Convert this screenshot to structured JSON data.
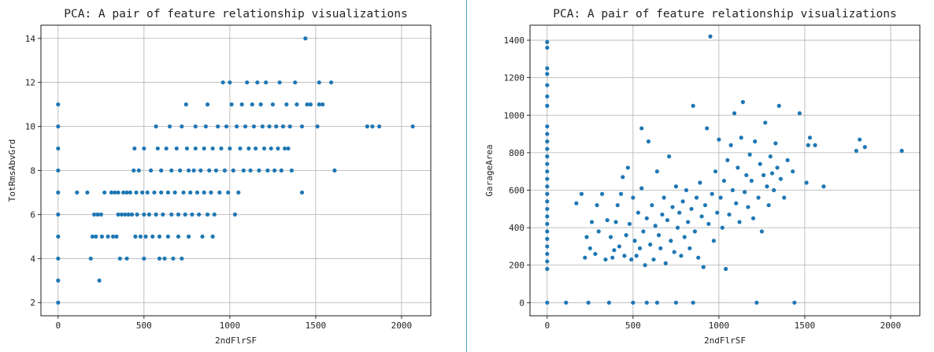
{
  "colors": {
    "point": "#1f77b4",
    "grid": "#b0b0b0",
    "axes": "#000000",
    "divider": "#4aa6b8"
  },
  "chart_data": [
    {
      "type": "scatter",
      "title": "PCA: A pair of feature relationship visualizations",
      "xlabel": "2ndFlrSF",
      "ylabel": "TotRmsAbvGrd",
      "xlim": [
        -100,
        2170
      ],
      "ylim": [
        1.4,
        14.6
      ],
      "xticks": [
        0,
        500,
        1000,
        1500,
        2000
      ],
      "yticks": [
        2,
        4,
        6,
        8,
        10,
        12,
        14
      ],
      "grid": true,
      "points": [
        [
          0,
          2
        ],
        [
          0,
          3
        ],
        [
          0,
          4
        ],
        [
          0,
          5
        ],
        [
          0,
          6
        ],
        [
          0,
          7
        ],
        [
          0,
          8
        ],
        [
          0,
          9
        ],
        [
          0,
          10
        ],
        [
          0,
          11
        ],
        [
          110,
          7
        ],
        [
          170,
          7
        ],
        [
          190,
          4
        ],
        [
          200,
          5
        ],
        [
          210,
          6
        ],
        [
          220,
          5
        ],
        [
          230,
          6
        ],
        [
          240,
          3
        ],
        [
          250,
          6
        ],
        [
          255,
          5
        ],
        [
          270,
          7
        ],
        [
          290,
          5
        ],
        [
          310,
          7
        ],
        [
          320,
          5
        ],
        [
          330,
          7
        ],
        [
          340,
          5
        ],
        [
          350,
          7
        ],
        [
          350,
          6
        ],
        [
          360,
          4
        ],
        [
          370,
          6
        ],
        [
          380,
          7
        ],
        [
          390,
          6
        ],
        [
          400,
          4
        ],
        [
          400,
          7
        ],
        [
          410,
          6
        ],
        [
          420,
          7
        ],
        [
          430,
          6
        ],
        [
          440,
          8
        ],
        [
          445,
          9
        ],
        [
          450,
          5
        ],
        [
          455,
          7
        ],
        [
          460,
          6
        ],
        [
          470,
          8
        ],
        [
          480,
          5
        ],
        [
          490,
          7
        ],
        [
          500,
          6
        ],
        [
          500,
          9
        ],
        [
          500,
          4
        ],
        [
          510,
          5
        ],
        [
          520,
          7
        ],
        [
          530,
          6
        ],
        [
          540,
          8
        ],
        [
          550,
          5
        ],
        [
          560,
          7
        ],
        [
          570,
          10
        ],
        [
          570,
          6
        ],
        [
          580,
          9
        ],
        [
          590,
          5
        ],
        [
          590,
          4
        ],
        [
          600,
          7
        ],
        [
          600,
          8
        ],
        [
          610,
          6
        ],
        [
          620,
          4
        ],
        [
          630,
          9
        ],
        [
          640,
          7
        ],
        [
          640,
          5
        ],
        [
          650,
          10
        ],
        [
          660,
          6
        ],
        [
          660,
          8
        ],
        [
          670,
          4
        ],
        [
          680,
          7
        ],
        [
          690,
          9
        ],
        [
          700,
          6
        ],
        [
          700,
          5
        ],
        [
          710,
          8
        ],
        [
          720,
          10
        ],
        [
          720,
          4
        ],
        [
          730,
          7
        ],
        [
          740,
          6
        ],
        [
          745,
          11
        ],
        [
          750,
          9
        ],
        [
          760,
          5
        ],
        [
          760,
          8
        ],
        [
          770,
          7
        ],
        [
          780,
          6
        ],
        [
          790,
          8
        ],
        [
          800,
          10
        ],
        [
          800,
          9
        ],
        [
          810,
          7
        ],
        [
          820,
          6
        ],
        [
          830,
          8
        ],
        [
          840,
          5
        ],
        [
          850,
          7
        ],
        [
          850,
          9
        ],
        [
          860,
          10
        ],
        [
          870,
          6
        ],
        [
          870,
          11
        ],
        [
          880,
          8
        ],
        [
          890,
          7
        ],
        [
          900,
          9
        ],
        [
          900,
          5
        ],
        [
          910,
          6
        ],
        [
          920,
          8
        ],
        [
          930,
          10
        ],
        [
          940,
          7
        ],
        [
          950,
          9
        ],
        [
          960,
          12
        ],
        [
          970,
          8
        ],
        [
          980,
          10
        ],
        [
          990,
          7
        ],
        [
          1000,
          12
        ],
        [
          1000,
          9
        ],
        [
          1010,
          11
        ],
        [
          1020,
          8
        ],
        [
          1030,
          6
        ],
        [
          1040,
          10
        ],
        [
          1050,
          7
        ],
        [
          1060,
          9
        ],
        [
          1070,
          11
        ],
        [
          1080,
          8
        ],
        [
          1090,
          10
        ],
        [
          1100,
          12
        ],
        [
          1110,
          9
        ],
        [
          1120,
          8
        ],
        [
          1130,
          11
        ],
        [
          1140,
          10
        ],
        [
          1150,
          9
        ],
        [
          1160,
          12
        ],
        [
          1170,
          8
        ],
        [
          1180,
          11
        ],
        [
          1190,
          10
        ],
        [
          1200,
          9
        ],
        [
          1210,
          12
        ],
        [
          1220,
          8
        ],
        [
          1230,
          10
        ],
        [
          1240,
          9
        ],
        [
          1250,
          11
        ],
        [
          1260,
          8
        ],
        [
          1270,
          10
        ],
        [
          1280,
          9
        ],
        [
          1290,
          12
        ],
        [
          1300,
          8
        ],
        [
          1310,
          10
        ],
        [
          1320,
          9
        ],
        [
          1330,
          11
        ],
        [
          1340,
          9
        ],
        [
          1350,
          10
        ],
        [
          1360,
          8
        ],
        [
          1380,
          12
        ],
        [
          1390,
          11
        ],
        [
          1420,
          10
        ],
        [
          1420,
          7
        ],
        [
          1440,
          14
        ],
        [
          1450,
          11
        ],
        [
          1470,
          11
        ],
        [
          1510,
          10
        ],
        [
          1520,
          12
        ],
        [
          1520,
          11
        ],
        [
          1540,
          11
        ],
        [
          1590,
          12
        ],
        [
          1610,
          8
        ],
        [
          1800,
          10
        ],
        [
          1830,
          10
        ],
        [
          1870,
          10
        ],
        [
          2065,
          10
        ]
      ]
    },
    {
      "type": "scatter",
      "title": "PCA: A pair of feature relationship visualizations",
      "xlabel": "2ndFlrSF",
      "ylabel": "GarageArea",
      "xlim": [
        -100,
        2170
      ],
      "ylim": [
        -70,
        1480
      ],
      "xticks": [
        0,
        500,
        1000,
        1500,
        2000
      ],
      "yticks": [
        0,
        200,
        400,
        600,
        800,
        1000,
        1200,
        1400
      ],
      "grid": true,
      "points": [
        [
          0,
          0
        ],
        [
          0,
          180
        ],
        [
          0,
          220
        ],
        [
          0,
          260
        ],
        [
          0,
          300
        ],
        [
          0,
          340
        ],
        [
          0,
          380
        ],
        [
          0,
          420
        ],
        [
          0,
          460
        ],
        [
          0,
          500
        ],
        [
          0,
          540
        ],
        [
          0,
          580
        ],
        [
          0,
          620
        ],
        [
          0,
          660
        ],
        [
          0,
          700
        ],
        [
          0,
          740
        ],
        [
          0,
          780
        ],
        [
          0,
          820
        ],
        [
          0,
          860
        ],
        [
          0,
          900
        ],
        [
          0,
          940
        ],
        [
          0,
          1050
        ],
        [
          0,
          1100
        ],
        [
          0,
          1160
        ],
        [
          0,
          1220
        ],
        [
          0,
          1250
        ],
        [
          0,
          1360
        ],
        [
          0,
          1390
        ],
        [
          110,
          0
        ],
        [
          170,
          530
        ],
        [
          200,
          580
        ],
        [
          220,
          240
        ],
        [
          230,
          350
        ],
        [
          240,
          0
        ],
        [
          250,
          290
        ],
        [
          260,
          430
        ],
        [
          280,
          260
        ],
        [
          290,
          520
        ],
        [
          300,
          380
        ],
        [
          320,
          580
        ],
        [
          340,
          230
        ],
        [
          350,
          440
        ],
        [
          360,
          0
        ],
        [
          370,
          350
        ],
        [
          380,
          240
        ],
        [
          390,
          280
        ],
        [
          400,
          430
        ],
        [
          410,
          520
        ],
        [
          420,
          300
        ],
        [
          430,
          580
        ],
        [
          440,
          670
        ],
        [
          450,
          250
        ],
        [
          460,
          360
        ],
        [
          470,
          720
        ],
        [
          480,
          420
        ],
        [
          490,
          230
        ],
        [
          500,
          0
        ],
        [
          500,
          560
        ],
        [
          510,
          330
        ],
        [
          520,
          250
        ],
        [
          530,
          480
        ],
        [
          540,
          290
        ],
        [
          550,
          930
        ],
        [
          550,
          610
        ],
        [
          560,
          380
        ],
        [
          570,
          200
        ],
        [
          580,
          0
        ],
        [
          580,
          450
        ],
        [
          590,
          860
        ],
        [
          600,
          310
        ],
        [
          610,
          520
        ],
        [
          620,
          230
        ],
        [
          630,
          410
        ],
        [
          640,
          0
        ],
        [
          640,
          700
        ],
        [
          650,
          360
        ],
        [
          660,
          290
        ],
        [
          670,
          470
        ],
        [
          680,
          560
        ],
        [
          690,
          210
        ],
        [
          700,
          440
        ],
        [
          710,
          780
        ],
        [
          720,
          330
        ],
        [
          730,
          510
        ],
        [
          740,
          270
        ],
        [
          750,
          0
        ],
        [
          750,
          620
        ],
        [
          760,
          400
        ],
        [
          770,
          480
        ],
        [
          780,
          250
        ],
        [
          790,
          540
        ],
        [
          800,
          350
        ],
        [
          810,
          600
        ],
        [
          820,
          430
        ],
        [
          830,
          290
        ],
        [
          840,
          500
        ],
        [
          850,
          0
        ],
        [
          850,
          1050
        ],
        [
          860,
          380
        ],
        [
          870,
          560
        ],
        [
          880,
          240
        ],
        [
          890,
          640
        ],
        [
          900,
          460
        ],
        [
          910,
          190
        ],
        [
          920,
          520
        ],
        [
          930,
          930
        ],
        [
          940,
          420
        ],
        [
          950,
          1420
        ],
        [
          960,
          580
        ],
        [
          970,
          330
        ],
        [
          980,
          700
        ],
        [
          990,
          480
        ],
        [
          1000,
          870
        ],
        [
          1010,
          560
        ],
        [
          1020,
          400
        ],
        [
          1030,
          650
        ],
        [
          1040,
          180
        ],
        [
          1050,
          760
        ],
        [
          1060,
          470
        ],
        [
          1070,
          840
        ],
        [
          1080,
          600
        ],
        [
          1090,
          1010
        ],
        [
          1100,
          530
        ],
        [
          1110,
          720
        ],
        [
          1120,
          430
        ],
        [
          1130,
          880
        ],
        [
          1140,
          1070
        ],
        [
          1150,
          590
        ],
        [
          1160,
          680
        ],
        [
          1170,
          510
        ],
        [
          1180,
          790
        ],
        [
          1190,
          650
        ],
        [
          1200,
          450
        ],
        [
          1210,
          860
        ],
        [
          1220,
          0
        ],
        [
          1230,
          560
        ],
        [
          1240,
          740
        ],
        [
          1250,
          380
        ],
        [
          1260,
          680
        ],
        [
          1270,
          960
        ],
        [
          1280,
          620
        ],
        [
          1290,
          520
        ],
        [
          1300,
          780
        ],
        [
          1310,
          690
        ],
        [
          1320,
          600
        ],
        [
          1330,
          850
        ],
        [
          1340,
          720
        ],
        [
          1350,
          1050
        ],
        [
          1360,
          660
        ],
        [
          1380,
          560
        ],
        [
          1400,
          760
        ],
        [
          1430,
          700
        ],
        [
          1440,
          0
        ],
        [
          1470,
          1010
        ],
        [
          1510,
          640
        ],
        [
          1520,
          840
        ],
        [
          1530,
          880
        ],
        [
          1560,
          840
        ],
        [
          1610,
          620
        ],
        [
          1800,
          810
        ],
        [
          1820,
          870
        ],
        [
          1850,
          830
        ],
        [
          2065,
          810
        ]
      ]
    }
  ]
}
